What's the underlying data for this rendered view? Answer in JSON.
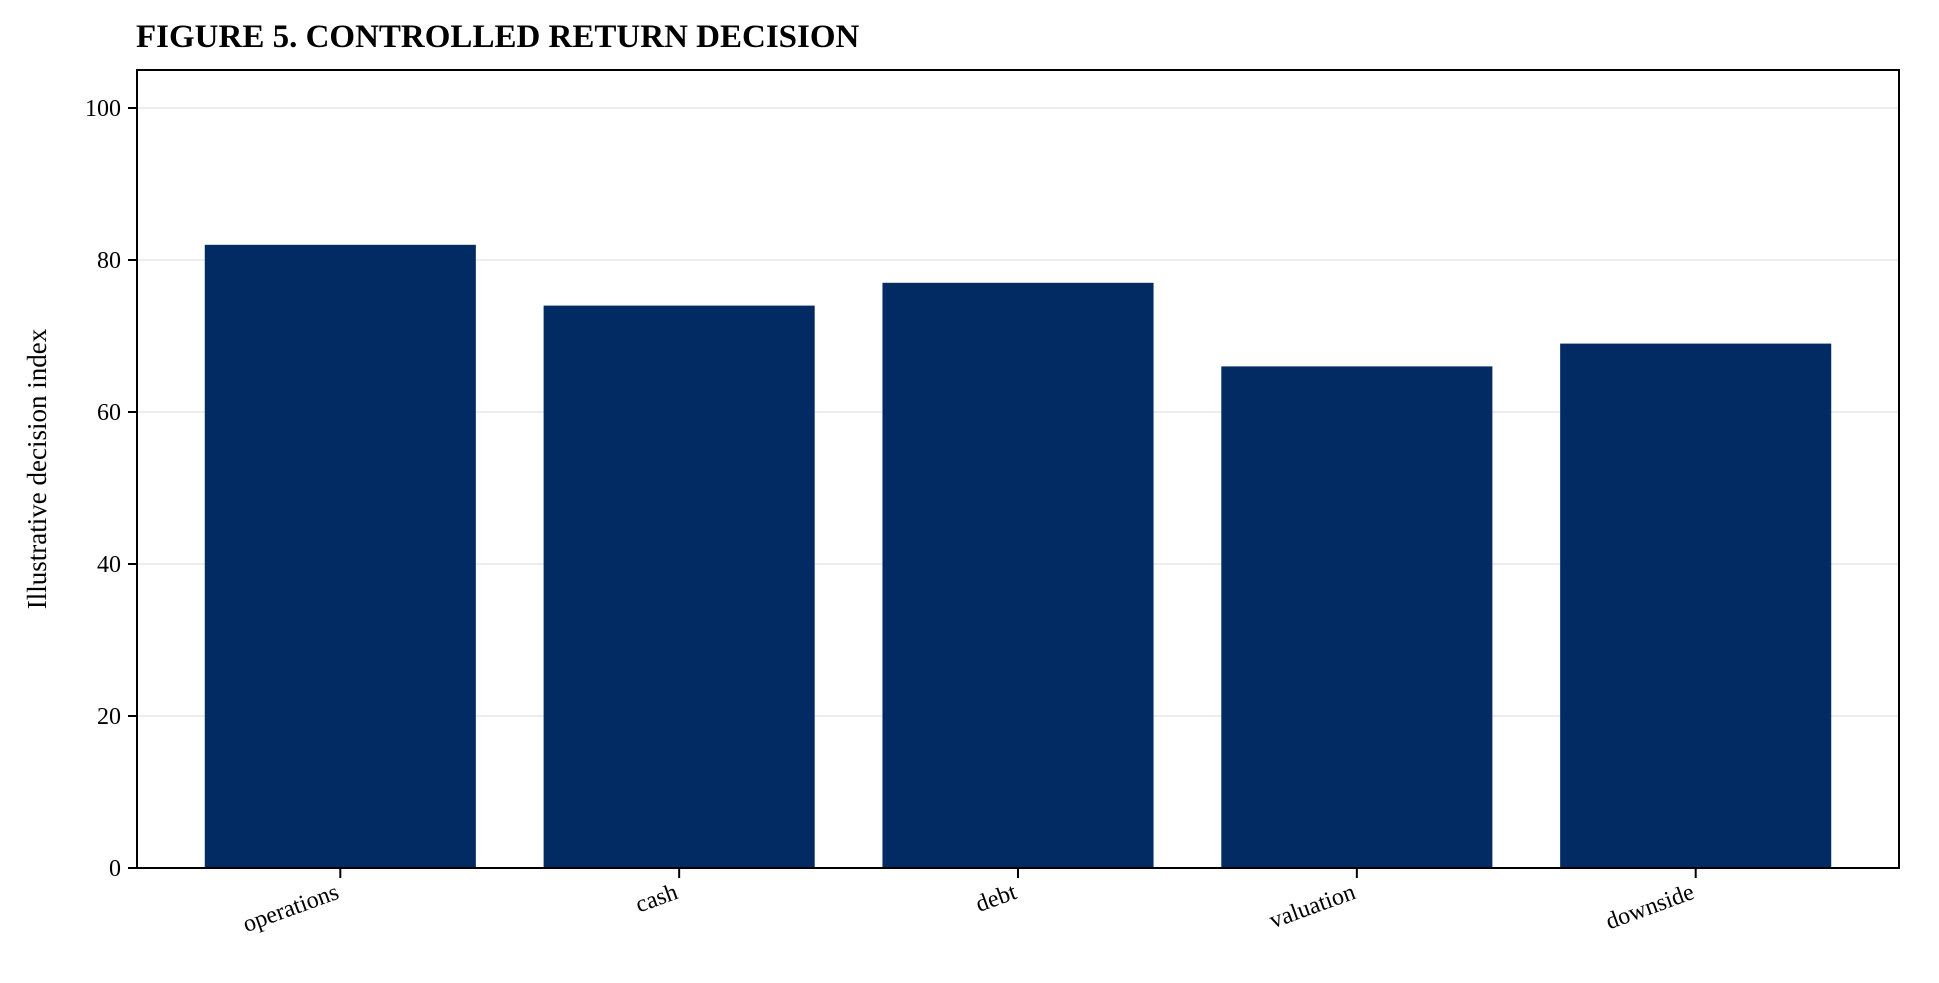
{
  "chart_data": {
    "type": "bar",
    "title": "FIGURE 5. CONTROLLED RETURN DECISION",
    "xlabel": "",
    "ylabel": "Illustrative decision index",
    "categories": [
      "operations",
      "cash",
      "debt",
      "valuation",
      "downside"
    ],
    "values": [
      82,
      74,
      77,
      66,
      69
    ],
    "ylim": [
      0,
      105
    ],
    "yticks": [
      0,
      20,
      40,
      60,
      80,
      100
    ],
    "grid": "horizontal",
    "bar_color": "#022a63",
    "legend": "none"
  }
}
